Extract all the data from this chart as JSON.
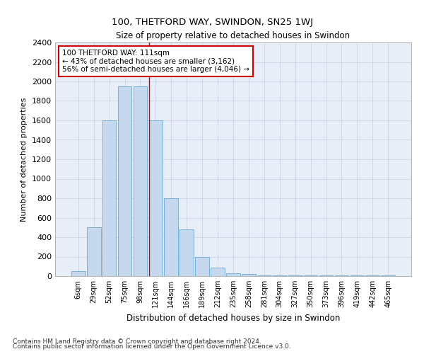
{
  "title": "100, THETFORD WAY, SWINDON, SN25 1WJ",
  "subtitle": "Size of property relative to detached houses in Swindon",
  "xlabel": "Distribution of detached houses by size in Swindon",
  "ylabel": "Number of detached properties",
  "footnote1": "Contains HM Land Registry data © Crown copyright and database right 2024.",
  "footnote2": "Contains public sector information licensed under the Open Government Licence v3.0.",
  "categories": [
    "6sqm",
    "29sqm",
    "52sqm",
    "75sqm",
    "98sqm",
    "121sqm",
    "144sqm",
    "166sqm",
    "189sqm",
    "212sqm",
    "235sqm",
    "258sqm",
    "281sqm",
    "304sqm",
    "327sqm",
    "350sqm",
    "373sqm",
    "396sqm",
    "419sqm",
    "442sqm",
    "465sqm"
  ],
  "values": [
    50,
    500,
    1600,
    1950,
    1950,
    1600,
    800,
    480,
    200,
    90,
    30,
    20,
    5,
    5,
    5,
    5,
    5,
    5,
    5,
    5,
    5
  ],
  "bar_color": "#c5d8ee",
  "bar_edge_color": "#7aafd4",
  "grid_color": "#c8d4e8",
  "background_color": "#e8eef8",
  "annotation_text": "100 THETFORD WAY: 111sqm\n← 43% of detached houses are smaller (3,162)\n56% of semi-detached houses are larger (4,046) →",
  "annotation_box_color": "#ffffff",
  "annotation_box_edge": "#cc0000",
  "property_line_x": 4.55,
  "ylim": [
    0,
    2400
  ],
  "yticks": [
    0,
    200,
    400,
    600,
    800,
    1000,
    1200,
    1400,
    1600,
    1800,
    2000,
    2200,
    2400
  ]
}
